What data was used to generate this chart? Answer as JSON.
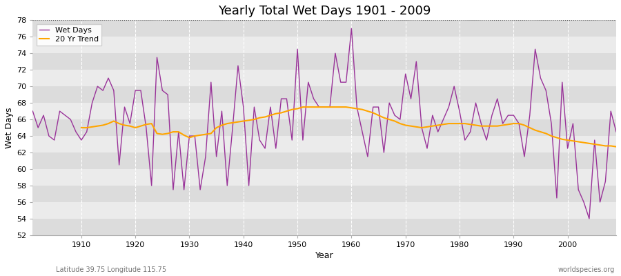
{
  "title": "Yearly Total Wet Days 1901 - 2009",
  "xlabel": "Year",
  "ylabel": "Wet Days",
  "footnote_left": "Latitude 39.75 Longitude 115.75",
  "footnote_right": "worldspecies.org",
  "ylim": [
    52,
    78
  ],
  "xlim": [
    1901,
    2009
  ],
  "yticks": [
    52,
    54,
    56,
    58,
    60,
    62,
    64,
    66,
    68,
    70,
    72,
    74,
    76,
    78
  ],
  "xticks": [
    1910,
    1920,
    1930,
    1940,
    1950,
    1960,
    1970,
    1980,
    1990,
    2000
  ],
  "bg_color_light": "#ebebeb",
  "bg_color_dark": "#dcdcdc",
  "fig_color": "#ffffff",
  "wet_days_color": "#993399",
  "trend_color": "#FFA500",
  "wet_days_linewidth": 1.0,
  "trend_linewidth": 1.5,
  "years": [
    1901,
    1902,
    1903,
    1904,
    1905,
    1906,
    1907,
    1908,
    1909,
    1910,
    1911,
    1912,
    1913,
    1914,
    1915,
    1916,
    1917,
    1918,
    1919,
    1920,
    1921,
    1922,
    1923,
    1924,
    1925,
    1926,
    1927,
    1928,
    1929,
    1930,
    1931,
    1932,
    1933,
    1934,
    1935,
    1936,
    1937,
    1938,
    1939,
    1940,
    1941,
    1942,
    1943,
    1944,
    1945,
    1946,
    1947,
    1948,
    1949,
    1950,
    1951,
    1952,
    1953,
    1954,
    1955,
    1956,
    1957,
    1958,
    1959,
    1960,
    1961,
    1962,
    1963,
    1964,
    1965,
    1966,
    1967,
    1968,
    1969,
    1970,
    1971,
    1972,
    1973,
    1974,
    1975,
    1976,
    1977,
    1978,
    1979,
    1980,
    1981,
    1982,
    1983,
    1984,
    1985,
    1986,
    1987,
    1988,
    1989,
    1990,
    1991,
    1992,
    1993,
    1994,
    1995,
    1996,
    1997,
    1998,
    1999,
    2000,
    2001,
    2002,
    2003,
    2004,
    2005,
    2006,
    2007,
    2008,
    2009
  ],
  "wet_days": [
    67.0,
    65.0,
    66.5,
    64.0,
    63.5,
    67.0,
    66.5,
    66.0,
    64.5,
    63.5,
    64.5,
    68.0,
    70.0,
    69.5,
    71.0,
    69.5,
    60.5,
    67.5,
    65.5,
    69.5,
    69.5,
    65.0,
    58.0,
    73.5,
    69.5,
    69.0,
    57.5,
    64.5,
    57.5,
    64.0,
    64.0,
    57.5,
    61.5,
    70.5,
    61.5,
    67.0,
    58.0,
    65.0,
    72.5,
    67.5,
    58.0,
    67.5,
    63.5,
    62.5,
    67.5,
    62.5,
    68.5,
    68.5,
    63.5,
    74.5,
    63.5,
    70.5,
    68.5,
    67.5,
    67.5,
    67.5,
    74.0,
    70.5,
    70.5,
    77.0,
    67.5,
    64.5,
    61.5,
    67.5,
    67.5,
    62.0,
    68.0,
    66.5,
    66.0,
    71.5,
    68.5,
    73.0,
    65.0,
    62.5,
    66.5,
    64.5,
    66.0,
    67.5,
    70.0,
    67.0,
    63.5,
    64.5,
    68.0,
    65.5,
    63.5,
    66.5,
    68.5,
    65.5,
    66.5,
    66.5,
    65.5,
    61.5,
    66.5,
    74.5,
    71.0,
    69.5,
    65.5,
    56.5,
    70.5,
    62.5,
    65.5,
    57.5,
    56.0,
    54.0,
    63.5,
    56.0,
    58.5,
    67.0,
    64.5
  ],
  "trend_years": [
    1910,
    1911,
    1912,
    1913,
    1914,
    1915,
    1916,
    1917,
    1918,
    1919,
    1920,
    1921,
    1922,
    1923,
    1924,
    1925,
    1926,
    1927,
    1928,
    1929,
    1930,
    1931,
    1932,
    1933,
    1934,
    1935,
    1936,
    1937,
    1938,
    1939,
    1940,
    1941,
    1942,
    1943,
    1944,
    1945,
    1946,
    1947,
    1948,
    1949,
    1950,
    1951,
    1952,
    1953,
    1954,
    1955,
    1956,
    1957,
    1958,
    1959,
    1960,
    1961,
    1962,
    1963,
    1964,
    1965,
    1966,
    1967,
    1968,
    1969,
    1970,
    1971,
    1972,
    1973,
    1974,
    1975,
    1976,
    1977,
    1978,
    1979,
    1980,
    1981,
    1982,
    1983,
    1984,
    1985,
    1986,
    1987,
    1988,
    1989,
    1990,
    1991,
    1992,
    1993,
    1994,
    1995,
    1996,
    1997,
    1998,
    1999,
    2000,
    2001,
    2002,
    2003,
    2004,
    2005,
    2006,
    2007,
    2008,
    2009
  ],
  "trend": [
    65.0,
    65.0,
    65.1,
    65.2,
    65.3,
    65.5,
    65.8,
    65.5,
    65.3,
    65.2,
    65.0,
    65.2,
    65.4,
    65.5,
    64.3,
    64.2,
    64.3,
    64.5,
    64.5,
    64.1,
    63.8,
    64.0,
    64.1,
    64.2,
    64.3,
    65.0,
    65.3,
    65.5,
    65.6,
    65.7,
    65.8,
    65.9,
    66.0,
    66.2,
    66.3,
    66.5,
    66.7,
    66.8,
    67.0,
    67.2,
    67.3,
    67.5,
    67.5,
    67.5,
    67.5,
    67.5,
    67.5,
    67.5,
    67.5,
    67.5,
    67.4,
    67.3,
    67.2,
    67.0,
    66.8,
    66.5,
    66.2,
    66.0,
    65.8,
    65.5,
    65.3,
    65.2,
    65.1,
    65.0,
    65.1,
    65.2,
    65.3,
    65.4,
    65.5,
    65.5,
    65.5,
    65.5,
    65.4,
    65.3,
    65.2,
    65.2,
    65.2,
    65.2,
    65.3,
    65.4,
    65.5,
    65.5,
    65.3,
    65.0,
    64.7,
    64.5,
    64.3,
    64.0,
    63.8,
    63.6,
    63.5,
    63.4,
    63.3,
    63.2,
    63.1,
    63.0,
    62.9,
    62.8,
    62.8,
    62.7
  ]
}
